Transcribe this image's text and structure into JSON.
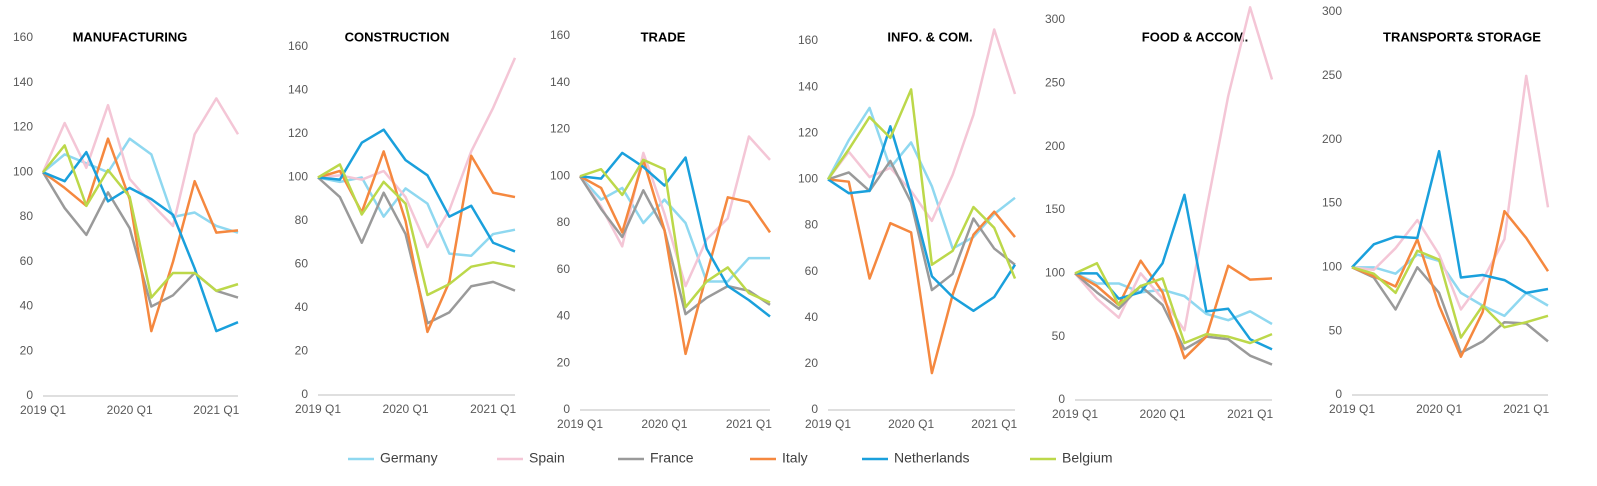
{
  "legend": [
    {
      "name": "Germany",
      "color": "#8fd8f0"
    },
    {
      "name": "Spain",
      "color": "#f4c6d6"
    },
    {
      "name": "France",
      "color": "#9a9a9a"
    },
    {
      "name": "Italy",
      "color": "#f5883f"
    },
    {
      "name": "Netherlands",
      "color": "#1aa0dc"
    },
    {
      "name": "Belgium",
      "color": "#bcd84a"
    }
  ],
  "chart_data": [
    {
      "type": "line",
      "title": "MANUFACTURING",
      "x": [
        "2019 Q1",
        null,
        null,
        null,
        "2020 Q1",
        null,
        null,
        null,
        "2021 Q1",
        null
      ],
      "ylim": [
        0,
        160
      ],
      "yticks": [
        0,
        20,
        40,
        60,
        80,
        100,
        120,
        140,
        160
      ],
      "series": [
        {
          "values": [
            100,
            108,
            104,
            100,
            115,
            108,
            80,
            82,
            76,
            73
          ]
        },
        {
          "values": [
            100,
            122,
            102,
            130,
            97,
            86,
            76,
            117,
            133,
            117
          ]
        },
        {
          "values": [
            100,
            84,
            72,
            91,
            75,
            40,
            45,
            55,
            47,
            44
          ]
        },
        {
          "values": [
            100,
            93,
            85,
            115,
            88,
            29,
            60,
            96,
            73,
            74
          ]
        },
        {
          "values": [
            100,
            96,
            109,
            87,
            93,
            88,
            81,
            57,
            29,
            33
          ]
        },
        {
          "values": [
            100,
            112,
            85,
            101,
            89,
            44,
            55,
            55,
            47,
            50
          ]
        }
      ]
    },
    {
      "type": "line",
      "title": "CONSTRUCTION",
      "x": [
        "2019 Q1",
        null,
        null,
        null,
        "2020 Q1",
        null,
        null,
        null,
        "2021 Q1",
        null
      ],
      "ylim": [
        0,
        160
      ],
      "yticks": [
        0,
        20,
        40,
        60,
        80,
        100,
        120,
        140,
        160
      ],
      "series": [
        {
          "values": [
            100,
            98,
            100,
            82,
            95,
            88,
            65,
            64,
            74,
            76
          ]
        },
        {
          "values": [
            100,
            101,
            99,
            103,
            91,
            68,
            85,
            112,
            132,
            155
          ]
        },
        {
          "values": [
            100,
            91,
            70,
            93,
            74,
            33,
            38,
            50,
            52,
            48
          ]
        },
        {
          "values": [
            100,
            103,
            84,
            112,
            80,
            29,
            52,
            110,
            93,
            91
          ]
        },
        {
          "values": [
            100,
            99,
            116,
            122,
            108,
            101,
            82,
            87,
            70,
            66
          ]
        },
        {
          "values": [
            100,
            106,
            83,
            98,
            88,
            46,
            51,
            59,
            61,
            59
          ]
        }
      ]
    },
    {
      "type": "line",
      "title": "TRADE",
      "x": [
        "2019 Q1",
        null,
        null,
        null,
        "2020 Q1",
        null,
        null,
        null,
        "2021 Q1",
        null
      ],
      "ylim": [
        0,
        160
      ],
      "yticks": [
        0,
        20,
        40,
        60,
        80,
        100,
        120,
        140,
        160
      ],
      "series": [
        {
          "values": [
            100,
            90,
            95,
            80,
            90,
            80,
            55,
            55,
            65,
            65
          ]
        },
        {
          "values": [
            100,
            87,
            70,
            110,
            84,
            53,
            73,
            82,
            117,
            107
          ]
        },
        {
          "values": [
            100,
            86,
            74,
            94,
            77,
            41,
            48,
            53,
            51,
            45
          ]
        },
        {
          "values": [
            100,
            95,
            76,
            107,
            77,
            24,
            58,
            91,
            89,
            76
          ]
        },
        {
          "values": [
            100,
            99,
            110,
            104,
            96,
            108,
            69,
            53,
            47,
            40
          ]
        },
        {
          "values": [
            100,
            103,
            92,
            107,
            103,
            44,
            55,
            61,
            50,
            46
          ]
        }
      ]
    },
    {
      "type": "line",
      "title": "INFO. & COM.",
      "x": [
        "2019 Q1",
        null,
        null,
        null,
        "2020 Q1",
        null,
        null,
        null,
        "2021 Q1",
        null
      ],
      "ylim": [
        0,
        160
      ],
      "yticks": [
        0,
        20,
        40,
        60,
        80,
        100,
        120,
        140,
        160
      ],
      "series": [
        {
          "values": [
            100,
            117,
            131,
            105,
            116,
            97,
            70,
            75,
            85,
            92
          ]
        },
        {
          "values": [
            100,
            112,
            101,
            105,
            95,
            82,
            102,
            128,
            165,
            137
          ]
        },
        {
          "values": [
            100,
            103,
            95,
            108,
            90,
            52,
            59,
            83,
            70,
            63
          ]
        },
        {
          "values": [
            100,
            99,
            57,
            81,
            77,
            16,
            50,
            76,
            86,
            75
          ]
        },
        {
          "values": [
            100,
            94,
            95,
            123,
            93,
            58,
            49,
            43,
            49,
            63
          ]
        },
        {
          "values": [
            100,
            113,
            127,
            118,
            139,
            63,
            69,
            88,
            79,
            57
          ]
        }
      ]
    },
    {
      "type": "line",
      "title": "FOOD & ACCOM.",
      "x": [
        "2019 Q1",
        null,
        null,
        null,
        "2020 Q1",
        null,
        null,
        null,
        "2021 Q1",
        null
      ],
      "ylim": [
        0,
        300
      ],
      "yticks": [
        0,
        50,
        100,
        150,
        200,
        250,
        300
      ],
      "series": [
        {
          "values": [
            100,
            92,
            92,
            85,
            87,
            82,
            68,
            63,
            70,
            60
          ]
        },
        {
          "values": [
            100,
            80,
            65,
            100,
            80,
            55,
            150,
            240,
            310,
            253
          ]
        },
        {
          "values": [
            100,
            85,
            72,
            90,
            75,
            40,
            50,
            48,
            35,
            28
          ]
        },
        {
          "values": [
            100,
            90,
            75,
            110,
            85,
            33,
            50,
            106,
            95,
            96
          ]
        },
        {
          "values": [
            100,
            100,
            80,
            85,
            108,
            162,
            70,
            72,
            48,
            40
          ]
        },
        {
          "values": [
            100,
            108,
            75,
            90,
            96,
            45,
            52,
            50,
            45,
            52
          ]
        }
      ]
    },
    {
      "type": "line",
      "title": "TRANSPORT& STORAGE",
      "x": [
        "2019 Q1",
        null,
        null,
        null,
        "2020 Q1",
        null,
        null,
        null,
        "2021 Q1",
        null
      ],
      "ylim": [
        0,
        300
      ],
      "yticks": [
        0,
        50,
        100,
        150,
        200,
        250,
        300
      ],
      "series": [
        {
          "values": [
            100,
            100,
            95,
            110,
            105,
            80,
            70,
            62,
            80,
            70
          ]
        },
        {
          "values": [
            100,
            98,
            115,
            137,
            110,
            67,
            90,
            122,
            250,
            147
          ]
        },
        {
          "values": [
            100,
            92,
            67,
            100,
            80,
            33,
            42,
            57,
            56,
            42
          ]
        },
        {
          "values": [
            100,
            93,
            85,
            122,
            70,
            30,
            65,
            144,
            123,
            97
          ]
        },
        {
          "values": [
            100,
            118,
            124,
            123,
            191,
            92,
            94,
            90,
            80,
            83
          ]
        },
        {
          "values": [
            100,
            95,
            80,
            113,
            106,
            45,
            70,
            53,
            57,
            62
          ]
        }
      ]
    }
  ]
}
